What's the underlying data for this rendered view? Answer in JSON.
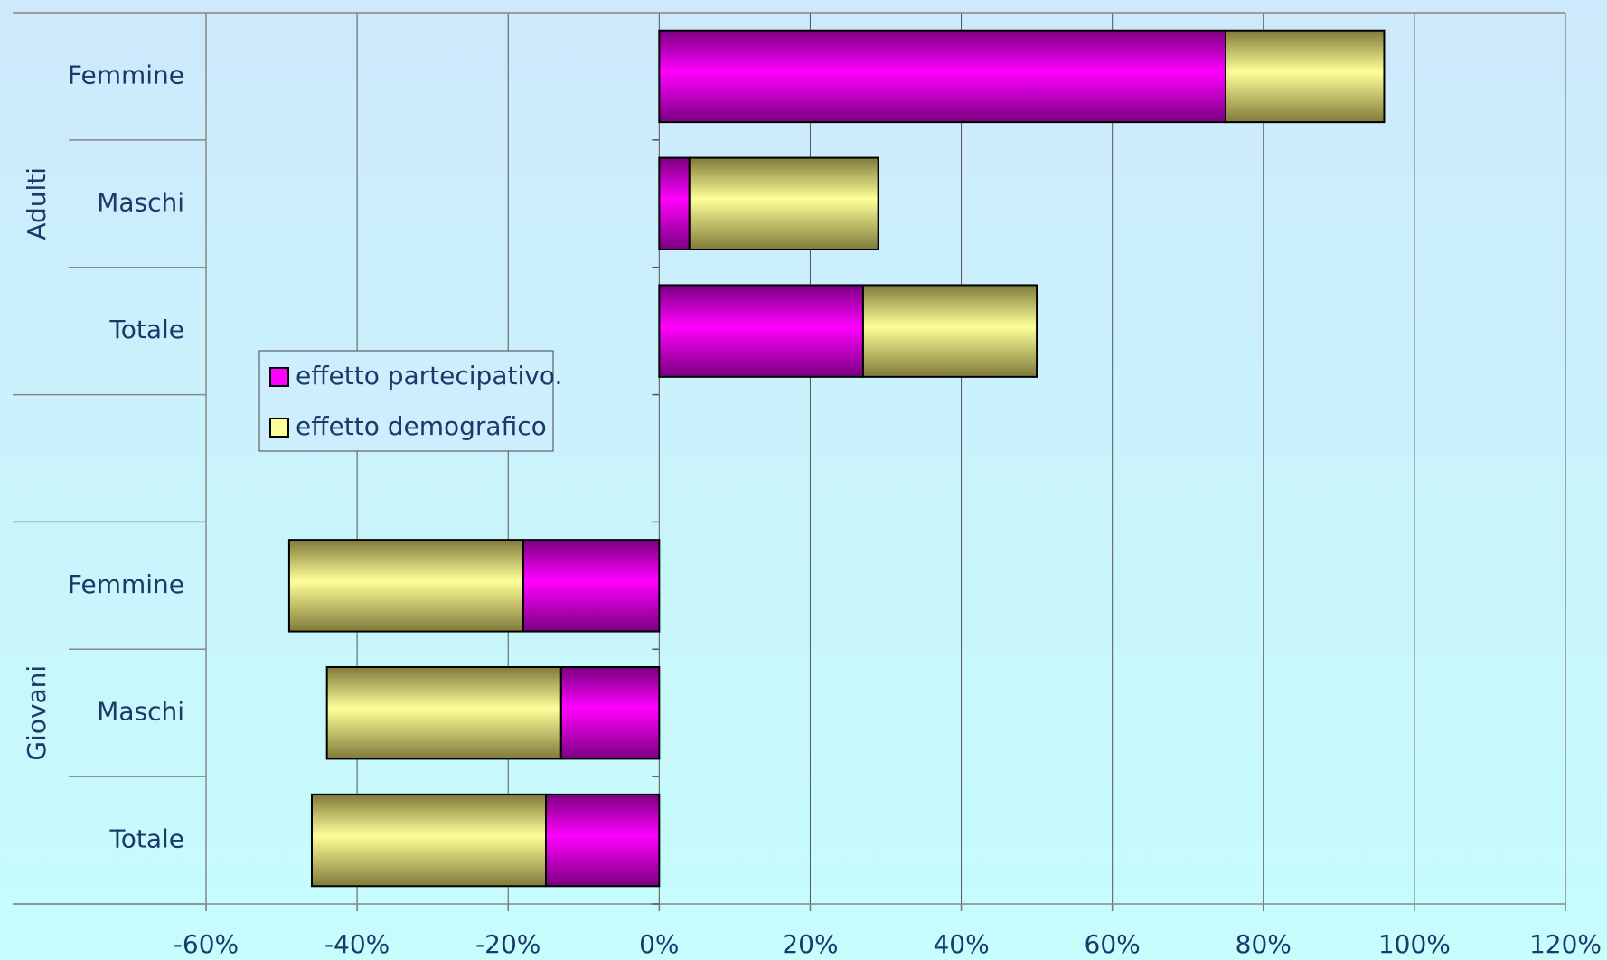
{
  "chart_data": {
    "type": "bar",
    "orientation": "horizontal",
    "stacked": true,
    "categories": [
      "Femmine",
      "Maschi",
      "Totale",
      null,
      "Femmine",
      "Maschi",
      "Totale"
    ],
    "category_groups": [
      "Adulti",
      "Adulti",
      "Adulti",
      null,
      "Giovani",
      "Giovani",
      "Giovani"
    ],
    "series": [
      {
        "name": "effetto partecipativo.",
        "color": "#ff00ff",
        "values": [
          75,
          4,
          27,
          null,
          -18,
          -13,
          -15
        ]
      },
      {
        "name": "effetto demografico",
        "color": "#ffff99",
        "values": [
          21,
          25,
          23,
          null,
          -31,
          -31,
          -31
        ]
      }
    ],
    "xlim": [
      -60,
      120
    ],
    "xticks": [
      {
        "value": -60,
        "label": "-60%"
      },
      {
        "value": -40,
        "label": "-40%"
      },
      {
        "value": -20,
        "label": "-20%"
      },
      {
        "value": 0,
        "label": "0%"
      },
      {
        "value": 20,
        "label": "20%"
      },
      {
        "value": 40,
        "label": "40%"
      },
      {
        "value": 60,
        "label": "60%"
      },
      {
        "value": 80,
        "label": "80%"
      },
      {
        "value": 100,
        "label": "100%"
      },
      {
        "value": 120,
        "label": "120%"
      }
    ],
    "grid": true
  }
}
